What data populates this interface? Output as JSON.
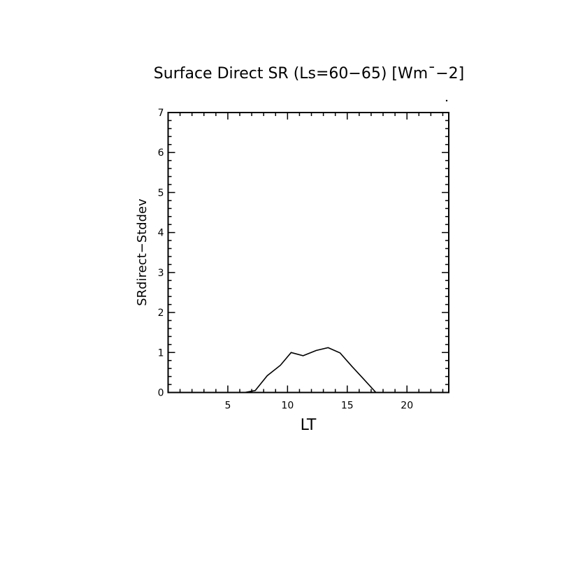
{
  "chart_data": {
    "type": "line",
    "title": "Surface Direct SR (Ls=60−65) [Wm¯−2]",
    "xlabel": "LT",
    "ylabel": "SRdirect−Stddev",
    "xlim": [
      0,
      23.5
    ],
    "ylim": [
      0,
      7
    ],
    "xticks": [
      5,
      10,
      15,
      20
    ],
    "xtick_labels": [
      "5",
      "10",
      "15",
      "20"
    ],
    "yticks": [
      0,
      1,
      2,
      3,
      4,
      5,
      6,
      7
    ],
    "ytick_labels": [
      "0",
      "1",
      "2",
      "3",
      "4",
      "5",
      "6",
      "7"
    ],
    "grid": false,
    "line_color": "#000000",
    "x": [
      6.4,
      7.3,
      8.3,
      9.4,
      10.3,
      11.3,
      12.4,
      13.4,
      14.4,
      15.4,
      16.3,
      17.4
    ],
    "y": [
      0.0,
      0.05,
      0.42,
      0.68,
      1.0,
      0.92,
      1.05,
      1.12,
      0.99,
      0.65,
      0.36,
      0.0
    ]
  }
}
